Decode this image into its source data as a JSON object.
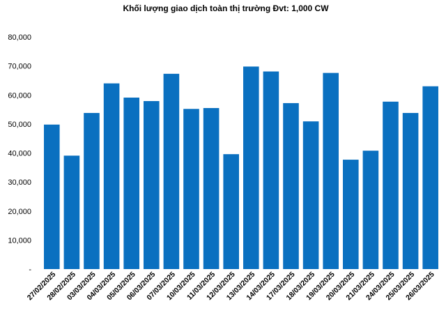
{
  "chart_data": {
    "type": "bar",
    "title": "Khối lượng giao dịch toàn thị trường Đvt: 1,000 CW",
    "xlabel": "",
    "ylabel": "",
    "ylim": [
      0,
      80000
    ],
    "ytick_labels": [
      "-",
      "10,000",
      "20,000",
      "30,000",
      "40,000",
      "50,000",
      "60,000",
      "70,000",
      "80,000"
    ],
    "grid": false,
    "legend": "none",
    "bar_color": "#0a70c0",
    "categories": [
      "27/02/2025",
      "28/02/2025",
      "03/03/2025",
      "04/03/2025",
      "05/03/2025",
      "06/03/2025",
      "07/03/2025",
      "10/03/2025",
      "11/03/2025",
      "12/03/2025",
      "13/03/2025",
      "14/03/2025",
      "17/03/2025",
      "18/03/2025",
      "19/03/2025",
      "20/03/2025",
      "21/03/2025",
      "24/03/2025",
      "25/03/2025",
      "26/03/2025"
    ],
    "values": [
      49800,
      39100,
      53800,
      64000,
      59100,
      57900,
      67300,
      55200,
      55500,
      39600,
      69800,
      68100,
      57200,
      50900,
      67600,
      37700,
      40800,
      57700,
      53800,
      63000
    ]
  }
}
